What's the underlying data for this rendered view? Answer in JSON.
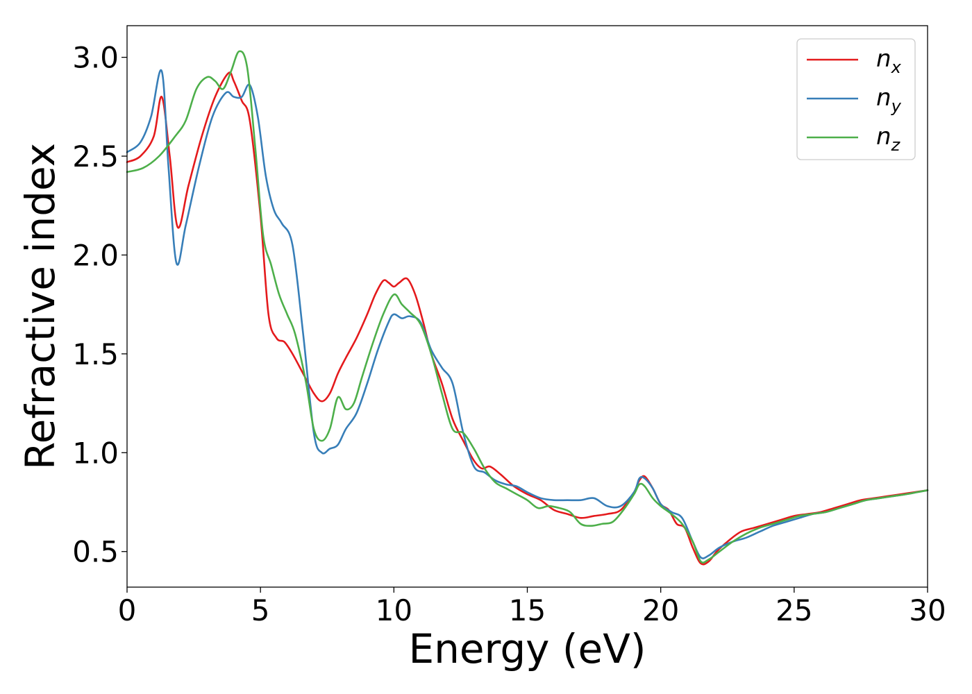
{
  "chart_data": {
    "type": "line",
    "title": "",
    "xlabel": "Energy (eV)",
    "ylabel": "Refractive index",
    "xlim": [
      0,
      30
    ],
    "ylim": [
      0.32,
      3.16
    ],
    "xticks": [
      0,
      5,
      10,
      15,
      20,
      25,
      30
    ],
    "yticks": [
      0.5,
      1.0,
      1.5,
      2.0,
      2.5,
      3.0
    ],
    "xtick_labels": [
      "0",
      "5",
      "10",
      "15",
      "20",
      "25",
      "30"
    ],
    "ytick_labels": [
      "0.5",
      "1.0",
      "1.5",
      "2.0",
      "2.5",
      "3.0"
    ],
    "grid": false,
    "legend_position": "top-right",
    "series": [
      {
        "name": "n_x",
        "label_base": "n",
        "label_sub": "x",
        "color": "#e41a1c",
        "x": [
          0,
          0.5,
          1.0,
          1.3,
          1.6,
          1.9,
          2.3,
          2.8,
          3.3,
          3.8,
          4.0,
          4.3,
          4.6,
          5.0,
          5.3,
          5.6,
          5.9,
          6.2,
          6.6,
          7.0,
          7.3,
          7.6,
          7.9,
          8.2,
          8.6,
          9.0,
          9.3,
          9.6,
          9.8,
          10.0,
          10.2,
          10.5,
          10.8,
          11.1,
          11.4,
          11.8,
          12.2,
          12.6,
          13.0,
          13.3,
          13.6,
          14.0,
          14.5,
          15.0,
          15.5,
          16.0,
          16.5,
          17.0,
          17.5,
          18.0,
          18.5,
          19.0,
          19.2,
          19.4,
          19.7,
          20.0,
          20.3,
          20.6,
          20.9,
          21.2,
          21.5,
          21.8,
          22.1,
          22.5,
          23.0,
          23.5,
          24.0,
          24.5,
          25.0,
          25.5,
          26.0,
          26.5,
          27.0,
          27.5,
          28.0,
          28.5,
          29.0,
          29.5,
          30.0
        ],
        "y": [
          2.47,
          2.5,
          2.6,
          2.8,
          2.5,
          2.14,
          2.35,
          2.6,
          2.8,
          2.92,
          2.88,
          2.78,
          2.68,
          2.2,
          1.7,
          1.58,
          1.56,
          1.5,
          1.4,
          1.3,
          1.26,
          1.3,
          1.4,
          1.48,
          1.58,
          1.7,
          1.8,
          1.87,
          1.86,
          1.84,
          1.86,
          1.88,
          1.8,
          1.66,
          1.5,
          1.35,
          1.17,
          1.06,
          0.96,
          0.92,
          0.93,
          0.89,
          0.83,
          0.79,
          0.76,
          0.71,
          0.69,
          0.67,
          0.68,
          0.69,
          0.71,
          0.8,
          0.86,
          0.88,
          0.82,
          0.74,
          0.71,
          0.64,
          0.62,
          0.52,
          0.44,
          0.45,
          0.5,
          0.55,
          0.6,
          0.62,
          0.64,
          0.66,
          0.68,
          0.69,
          0.7,
          0.72,
          0.74,
          0.76,
          0.77,
          0.78,
          0.79,
          0.8,
          0.81
        ]
      },
      {
        "name": "n_y",
        "label_base": "n",
        "label_sub": "y",
        "color": "#377eb8",
        "x": [
          0,
          0.5,
          0.9,
          1.3,
          1.55,
          1.85,
          2.2,
          2.7,
          3.2,
          3.7,
          4.0,
          4.3,
          4.6,
          4.9,
          5.2,
          5.5,
          5.8,
          6.2,
          6.6,
          7.0,
          7.3,
          7.6,
          7.9,
          8.2,
          8.6,
          9.0,
          9.4,
          9.8,
          10.0,
          10.3,
          10.6,
          11.0,
          11.4,
          11.8,
          12.2,
          12.6,
          13.0,
          13.4,
          13.8,
          14.2,
          14.6,
          15.0,
          15.5,
          16.0,
          16.5,
          17.0,
          17.5,
          18.0,
          18.5,
          19.0,
          19.2,
          19.4,
          19.7,
          20.0,
          20.4,
          20.8,
          21.2,
          21.5,
          21.8,
          22.2,
          22.7,
          23.2,
          23.7,
          24.2,
          24.7,
          25.2,
          25.7,
          26.2,
          26.7,
          27.2,
          27.7,
          28.2,
          28.7,
          29.2,
          29.6,
          30.0
        ],
        "y": [
          2.52,
          2.57,
          2.7,
          2.93,
          2.45,
          1.96,
          2.15,
          2.45,
          2.7,
          2.82,
          2.8,
          2.8,
          2.86,
          2.7,
          2.4,
          2.23,
          2.16,
          2.05,
          1.6,
          1.1,
          1.0,
          1.02,
          1.04,
          1.12,
          1.2,
          1.35,
          1.52,
          1.66,
          1.7,
          1.68,
          1.69,
          1.66,
          1.52,
          1.43,
          1.35,
          1.1,
          0.93,
          0.9,
          0.86,
          0.84,
          0.83,
          0.8,
          0.77,
          0.76,
          0.76,
          0.76,
          0.77,
          0.73,
          0.73,
          0.8,
          0.87,
          0.87,
          0.82,
          0.74,
          0.7,
          0.67,
          0.55,
          0.47,
          0.48,
          0.52,
          0.55,
          0.57,
          0.6,
          0.63,
          0.65,
          0.67,
          0.69,
          0.7,
          0.72,
          0.74,
          0.76,
          0.77,
          0.78,
          0.79,
          0.8,
          0.81
        ]
      },
      {
        "name": "n_z",
        "label_base": "n",
        "label_sub": "z",
        "color": "#4daf4a",
        "x": [
          0,
          0.6,
          1.2,
          1.8,
          2.2,
          2.6,
          3.0,
          3.3,
          3.6,
          3.9,
          4.2,
          4.5,
          4.8,
          5.1,
          5.4,
          5.7,
          6.0,
          6.3,
          6.7,
          7.0,
          7.3,
          7.6,
          7.9,
          8.2,
          8.5,
          8.8,
          9.2,
          9.6,
          10.0,
          10.3,
          10.6,
          11.0,
          11.4,
          11.8,
          12.2,
          12.6,
          13.0,
          13.4,
          13.8,
          14.2,
          14.6,
          15.0,
          15.4,
          15.8,
          16.2,
          16.6,
          17.0,
          17.4,
          17.8,
          18.2,
          18.6,
          19.0,
          19.2,
          19.4,
          19.7,
          20.0,
          20.4,
          20.8,
          21.2,
          21.5,
          21.8,
          22.2,
          22.7,
          23.2,
          23.7,
          24.2,
          24.7,
          25.2,
          25.7,
          26.2,
          26.7,
          27.2,
          27.7,
          28.2,
          28.7,
          29.2,
          29.6,
          30.0
        ],
        "y": [
          2.42,
          2.44,
          2.5,
          2.6,
          2.68,
          2.84,
          2.9,
          2.88,
          2.84,
          2.93,
          3.03,
          2.95,
          2.55,
          2.1,
          1.95,
          1.8,
          1.7,
          1.6,
          1.36,
          1.12,
          1.06,
          1.12,
          1.28,
          1.22,
          1.25,
          1.38,
          1.55,
          1.7,
          1.8,
          1.75,
          1.71,
          1.65,
          1.5,
          1.3,
          1.12,
          1.1,
          1.02,
          0.92,
          0.85,
          0.82,
          0.79,
          0.76,
          0.72,
          0.73,
          0.72,
          0.7,
          0.64,
          0.63,
          0.64,
          0.65,
          0.71,
          0.79,
          0.84,
          0.83,
          0.77,
          0.73,
          0.69,
          0.64,
          0.55,
          0.45,
          0.46,
          0.5,
          0.55,
          0.59,
          0.62,
          0.64,
          0.66,
          0.68,
          0.69,
          0.7,
          0.72,
          0.74,
          0.76,
          0.77,
          0.78,
          0.79,
          0.8,
          0.81
        ]
      }
    ]
  }
}
